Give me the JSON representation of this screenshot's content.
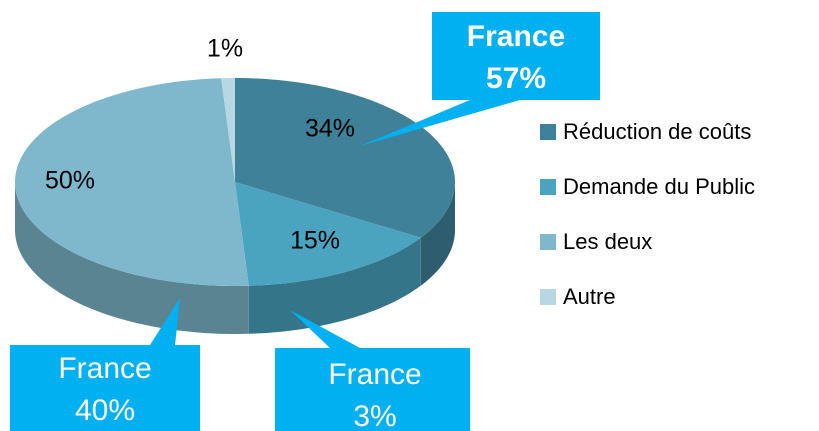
{
  "chart_data": {
    "type": "pie",
    "categories": [
      "Réduction de coûts",
      "Demande du Public",
      "Les deux",
      "Autre"
    ],
    "values": [
      34,
      15,
      50,
      1
    ],
    "value_labels": [
      "34%",
      "15%",
      "50%",
      "1%"
    ],
    "colors": [
      "#3f8199",
      "#4aa3bf",
      "#7fb8cc",
      "#b7d7e2"
    ],
    "legend": "right",
    "annotations": [
      {
        "lines": [
          "France",
          "57%"
        ]
      },
      {
        "lines": [
          "France",
          "40%"
        ]
      },
      {
        "lines": [
          "France",
          "3%"
        ]
      }
    ]
  }
}
